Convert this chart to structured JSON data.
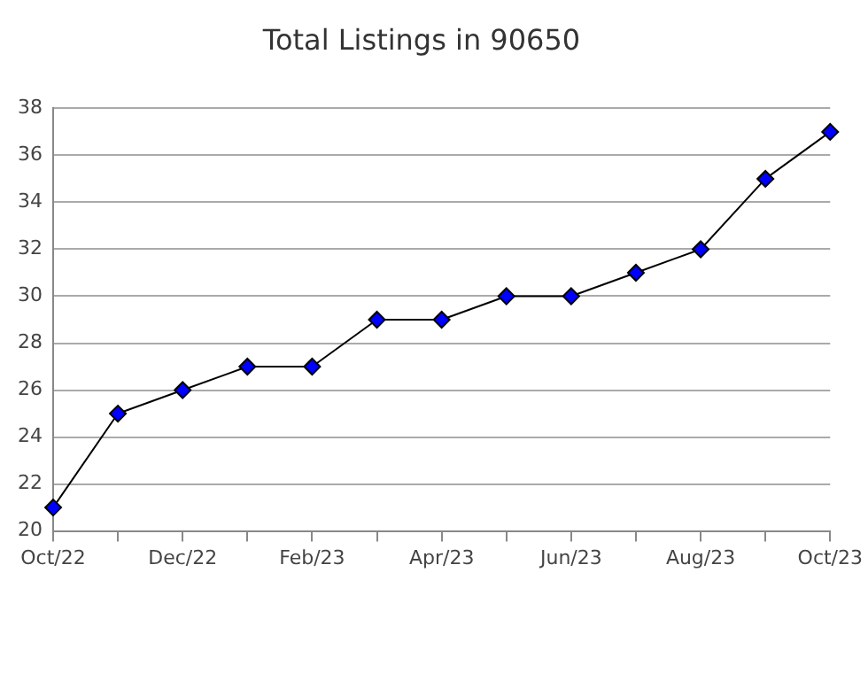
{
  "chart_data": {
    "type": "line",
    "title": "Total Listings in 90650",
    "categories": [
      "Oct/22",
      null,
      "Dec/22",
      null,
      "Feb/23",
      null,
      "Apr/23",
      null,
      "Jun/23",
      null,
      "Aug/23",
      null,
      "Oct/23"
    ],
    "series": [
      {
        "color": "#0000ff",
        "values": [
          21,
          25,
          26,
          27,
          27,
          29,
          29,
          30,
          30,
          31,
          32,
          35,
          37
        ]
      }
    ],
    "ylim": [
      20,
      38
    ],
    "yticks": [
      20,
      22,
      24,
      26,
      28,
      30,
      32,
      34,
      36,
      38
    ],
    "grid": "y",
    "marker": "diamond",
    "line_style": "solid",
    "legend": false
  }
}
